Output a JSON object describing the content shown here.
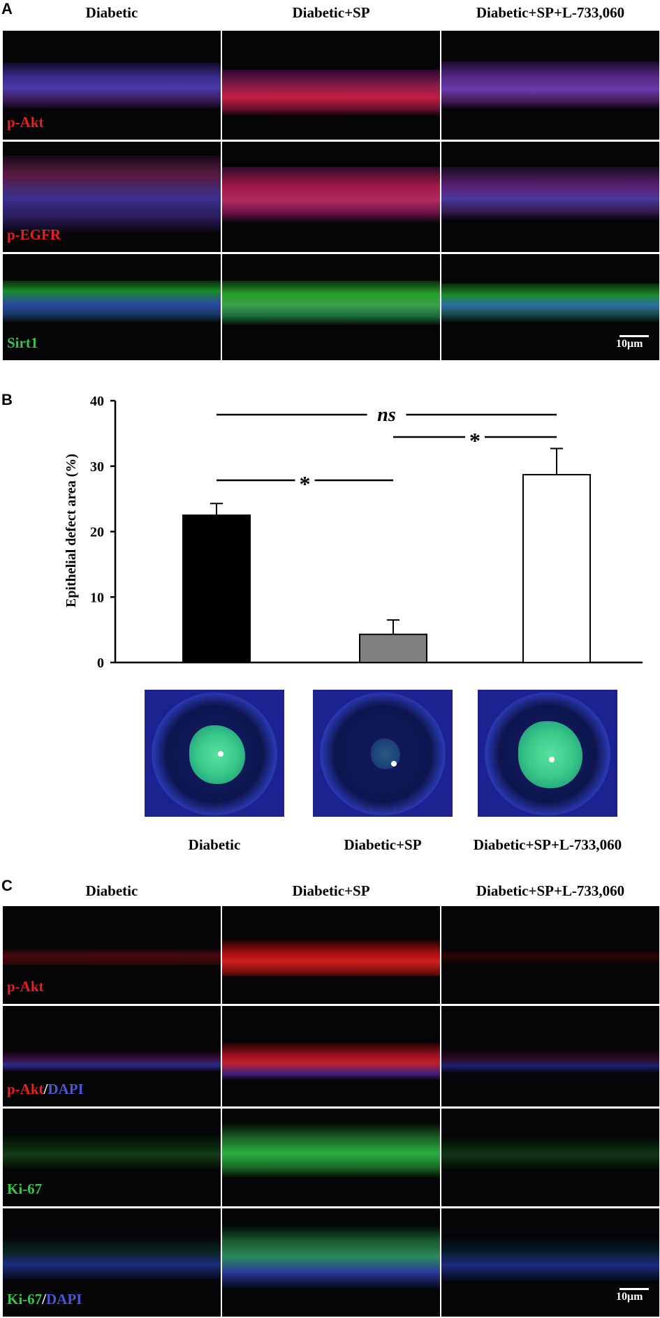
{
  "panel_a": {
    "letter": "A",
    "columns": [
      "Diabetic",
      "Diabetic+SP",
      "Diabetic+SP+L-733,060"
    ],
    "rows": [
      {
        "label": "p-Akt",
        "label_color": "#e8201c"
      },
      {
        "label": "p-EGFR",
        "label_color": "#e8201c"
      },
      {
        "label": "Sirt1",
        "label_color": "#37c44a"
      }
    ],
    "scale_bar": "10μm"
  },
  "panel_b": {
    "letter": "B",
    "chart_data": {
      "type": "bar",
      "categories": [
        "Diabetic",
        "Diabetic+SP",
        "Diabetic+SP+L-733,060"
      ],
      "values": [
        22.5,
        4.3,
        28.7
      ],
      "errors": [
        1.8,
        2.2,
        4.0
      ],
      "bar_colors": [
        "#000000",
        "#808080",
        "#ffffff"
      ],
      "ylabel": "Epithelial defect area (%)",
      "ylim": [
        0,
        40
      ],
      "yticks": [
        "0",
        "10",
        "20",
        "30",
        "40"
      ],
      "significance": [
        {
          "from": "Diabetic",
          "to": "Diabetic+SP+L-733,060",
          "label": "ns"
        },
        {
          "from": "Diabetic+SP",
          "to": "Diabetic+SP+L-733,060",
          "label": "*"
        },
        {
          "from": "Diabetic",
          "to": "Diabetic+SP",
          "label": "*"
        }
      ]
    },
    "eye_stain_fraction": [
      0.225,
      0.043,
      0.287
    ]
  },
  "panel_c": {
    "letter": "C",
    "columns": [
      "Diabetic",
      "Diabetic+SP",
      "Diabetic+SP+L-733,060"
    ],
    "rows": [
      {
        "label_parts": [
          {
            "text": "p-Akt",
            "color": "#e8201c"
          }
        ]
      },
      {
        "label_parts": [
          {
            "text": "p-Akt",
            "color": "#e8201c"
          },
          {
            "text": "/",
            "color": "#ffffff"
          },
          {
            "text": "DAPI",
            "color": "#4a55d8"
          }
        ]
      },
      {
        "label_parts": [
          {
            "text": "Ki-67",
            "color": "#37c44a"
          }
        ]
      },
      {
        "label_parts": [
          {
            "text": "Ki-67",
            "color": "#37c44a"
          },
          {
            "text": "/",
            "color": "#ffffff"
          },
          {
            "text": "DAPI",
            "color": "#4a55d8"
          }
        ]
      }
    ],
    "scale_bar": "10μm"
  }
}
